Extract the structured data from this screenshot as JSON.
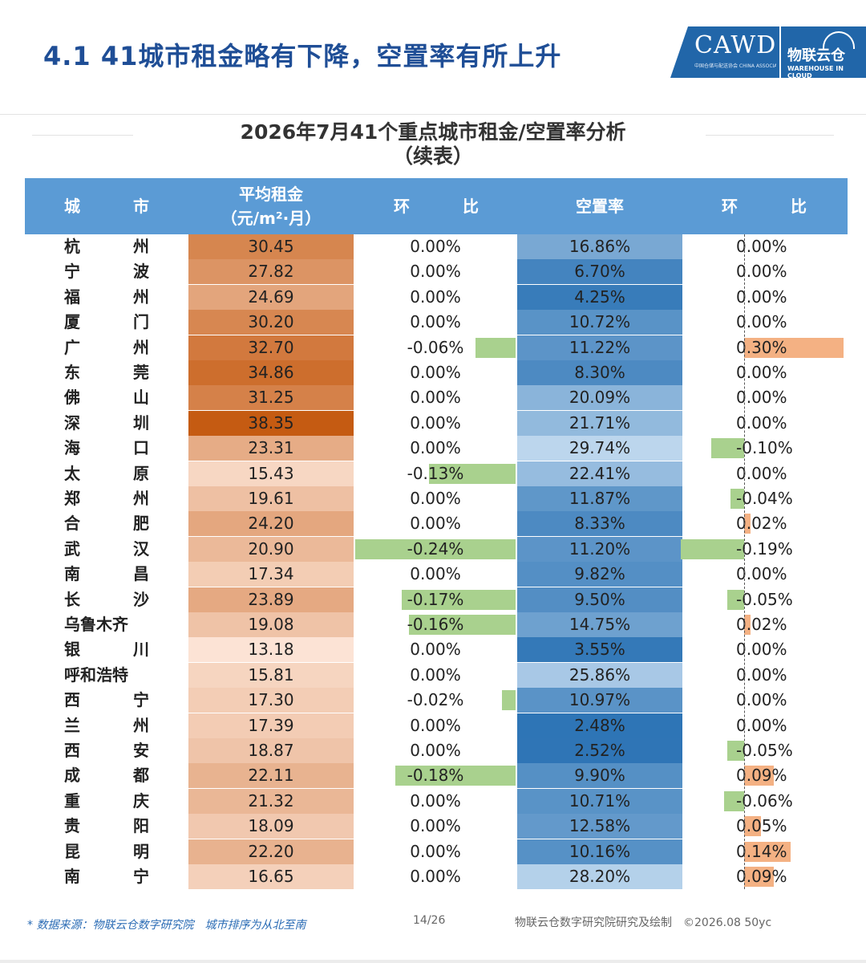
{
  "header": {
    "title": "4.1 41城市租金略有下降，空置率有所上升",
    "logo_left": "CAWD",
    "logo_left_sub": "中国仓储与配送协会 CHINA ASSOCIATION OF WAREHOUSING AND DISTRIBUTION",
    "logo_right": "物联云仓",
    "logo_right_sub": "WAREHOUSE IN CLOUD"
  },
  "table": {
    "title_line1": "2026年7月41个重点城市租金/空置率分析",
    "title_line2": "（续表）",
    "headers": {
      "city_1": "城",
      "city_2": "市",
      "rent_line1": "平均租金",
      "rent_line2": "（元/m²·月）",
      "chg1_1": "环",
      "chg1_2": "比",
      "vacancy": "空置率",
      "chg2_1": "环",
      "chg2_2": "比"
    },
    "colors": {
      "header_bg": "#5b9bd5",
      "negative_bar": "#a9d18e",
      "positive_bar": "#f4b183"
    },
    "rows": [
      {
        "city": "杭州",
        "rent": "30.45",
        "rent_chg": "0.00%",
        "vacancy": "16.86%",
        "vac_chg": "0.00%"
      },
      {
        "city": "宁波",
        "rent": "27.82",
        "rent_chg": "0.00%",
        "vacancy": "6.70%",
        "vac_chg": "0.00%"
      },
      {
        "city": "福州",
        "rent": "24.69",
        "rent_chg": "0.00%",
        "vacancy": "4.25%",
        "vac_chg": "0.00%"
      },
      {
        "city": "厦门",
        "rent": "30.20",
        "rent_chg": "0.00%",
        "vacancy": "10.72%",
        "vac_chg": "0.00%"
      },
      {
        "city": "广州",
        "rent": "32.70",
        "rent_chg": "-0.06%",
        "vacancy": "11.22%",
        "vac_chg": "0.30%"
      },
      {
        "city": "东莞",
        "rent": "34.86",
        "rent_chg": "0.00%",
        "vacancy": "8.30%",
        "vac_chg": "0.00%"
      },
      {
        "city": "佛山",
        "rent": "31.25",
        "rent_chg": "0.00%",
        "vacancy": "20.09%",
        "vac_chg": "0.00%"
      },
      {
        "city": "深圳",
        "rent": "38.35",
        "rent_chg": "0.00%",
        "vacancy": "21.71%",
        "vac_chg": "0.00%"
      },
      {
        "city": "海口",
        "rent": "23.31",
        "rent_chg": "0.00%",
        "vacancy": "29.74%",
        "vac_chg": "-0.10%"
      },
      {
        "city": "太原",
        "rent": "15.43",
        "rent_chg": "-0.13%",
        "vacancy": "22.41%",
        "vac_chg": "0.00%"
      },
      {
        "city": "郑州",
        "rent": "19.61",
        "rent_chg": "0.00%",
        "vacancy": "11.87%",
        "vac_chg": "-0.04%"
      },
      {
        "city": "合肥",
        "rent": "24.20",
        "rent_chg": "0.00%",
        "vacancy": "8.33%",
        "vac_chg": "0.02%"
      },
      {
        "city": "武汉",
        "rent": "20.90",
        "rent_chg": "-0.24%",
        "vacancy": "11.20%",
        "vac_chg": "-0.19%"
      },
      {
        "city": "南昌",
        "rent": "17.34",
        "rent_chg": "0.00%",
        "vacancy": "9.82%",
        "vac_chg": "0.00%"
      },
      {
        "city": "长沙",
        "rent": "23.89",
        "rent_chg": "-0.17%",
        "vacancy": "9.50%",
        "vac_chg": "-0.05%"
      },
      {
        "city": "乌鲁木齐",
        "rent": "19.08",
        "rent_chg": "-0.16%",
        "vacancy": "14.75%",
        "vac_chg": "0.02%"
      },
      {
        "city": "银川",
        "rent": "13.18",
        "rent_chg": "0.00%",
        "vacancy": "3.55%",
        "vac_chg": "0.00%"
      },
      {
        "city": "呼和浩特",
        "rent": "15.81",
        "rent_chg": "0.00%",
        "vacancy": "25.86%",
        "vac_chg": "0.00%"
      },
      {
        "city": "西宁",
        "rent": "17.30",
        "rent_chg": "-0.02%",
        "vacancy": "10.97%",
        "vac_chg": "0.00%"
      },
      {
        "city": "兰州",
        "rent": "17.39",
        "rent_chg": "0.00%",
        "vacancy": "2.48%",
        "vac_chg": "0.00%"
      },
      {
        "city": "西安",
        "rent": "18.87",
        "rent_chg": "0.00%",
        "vacancy": "2.52%",
        "vac_chg": "-0.05%"
      },
      {
        "city": "成都",
        "rent": "22.11",
        "rent_chg": "-0.18%",
        "vacancy": "9.90%",
        "vac_chg": "0.09%"
      },
      {
        "city": "重庆",
        "rent": "21.32",
        "rent_chg": "0.00%",
        "vacancy": "10.71%",
        "vac_chg": "-0.06%"
      },
      {
        "city": "贵阳",
        "rent": "18.09",
        "rent_chg": "0.00%",
        "vacancy": "12.58%",
        "vac_chg": "0.05%"
      },
      {
        "city": "昆明",
        "rent": "22.20",
        "rent_chg": "0.00%",
        "vacancy": "10.16%",
        "vac_chg": "0.14%"
      },
      {
        "city": "南宁",
        "rent": "16.65",
        "rent_chg": "0.00%",
        "vacancy": "28.20%",
        "vac_chg": "0.09%"
      }
    ]
  },
  "footer": {
    "note": "* 数据来源：物联云仓数字研究院　城市排序为从北至南",
    "page": "14/26",
    "credit": "物联云仓数字研究院研究及绘制　©2026.08 50yc"
  }
}
